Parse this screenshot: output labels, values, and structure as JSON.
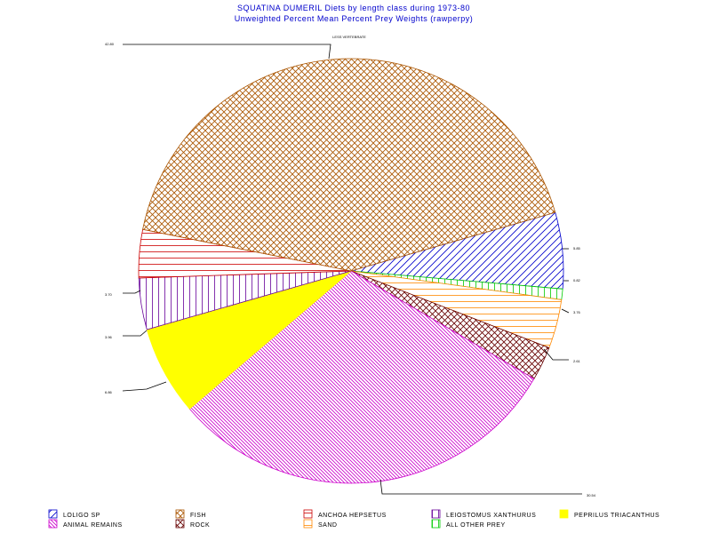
{
  "chart_data": {
    "type": "pie",
    "title": "SQUATINA DUMERIL Diets by length class during 1973-80",
    "subtitle": "Unweighted Percent Mean Percent Prey  Weights (rawperpy)",
    "slices": [
      {
        "key": "loligo",
        "name": "LOLIGO SP",
        "value": 5.85,
        "label": "5.85",
        "color": "#0000cc",
        "pattern": "diag-up"
      },
      {
        "key": "all_other",
        "name": "ALL OTHER PREY",
        "value": 0.82,
        "label": "0.82",
        "color": "#00cc00",
        "pattern": "vertical"
      },
      {
        "key": "sand",
        "name": "SAND",
        "value": 3.76,
        "label": "3.76",
        "color": "#ff8800",
        "pattern": "horizontal"
      },
      {
        "key": "rock",
        "name": "ROCK",
        "value": 2.61,
        "label": "2.61",
        "color": "#660000",
        "pattern": "crosshatch"
      },
      {
        "key": "animal",
        "name": "ANIMAL REMAINS",
        "value": 30.54,
        "label": "30.54",
        "color": "#cc00cc",
        "pattern": "diag-down-dense"
      },
      {
        "key": "peprilus",
        "name": "PEPRILUS TRIACANTHUS",
        "value": 6.86,
        "label": "6.86",
        "color": "#ffff00",
        "pattern": "solid"
      },
      {
        "key": "leiostomus",
        "name": "LEIOSTOMUS XANTHURUS",
        "value": 3.96,
        "label": "3.96",
        "color": "#660099",
        "pattern": "vertical"
      },
      {
        "key": "anchoa",
        "name": "ANCHOA HEPSETUS",
        "value": 3.7,
        "label": "3.70",
        "color": "#cc0000",
        "pattern": "horizontal"
      },
      {
        "key": "fish",
        "name": "FISH",
        "value": 42.8,
        "label": "42.80",
        "color": "#aa5500",
        "pattern": "crosshatch"
      }
    ],
    "fish_top_label": "LESS VERTEBRATE"
  },
  "legend": {
    "row1": [
      "LOLIGO SP",
      "FISH",
      "ANCHOA HEPSETUS",
      "LEIOSTOMUS XANTHURUS",
      "PEPRILUS TRIACANTHUS"
    ],
    "row2": [
      "ANIMAL REMAINS",
      "ROCK",
      "SAND",
      "ALL OTHER PREY"
    ]
  }
}
